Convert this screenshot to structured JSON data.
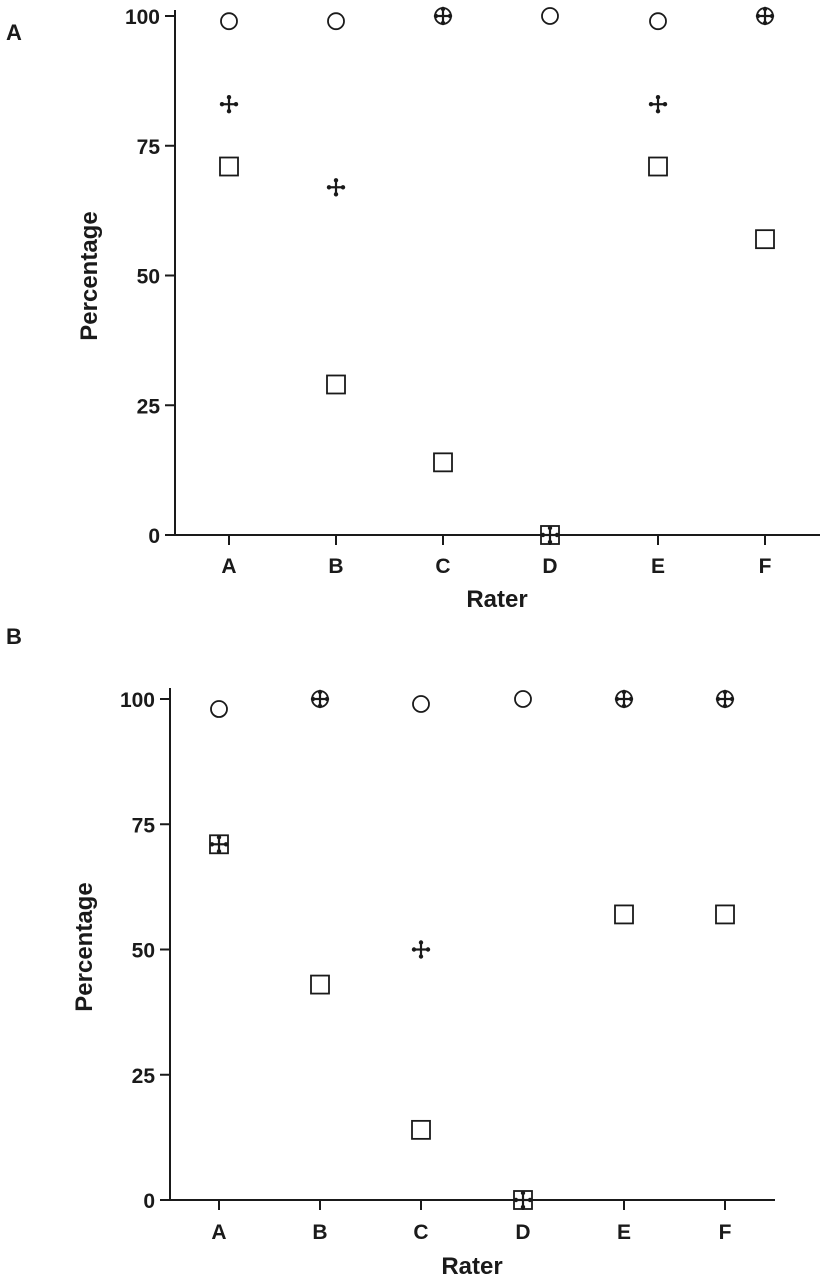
{
  "chart_data": [
    {
      "panel": "A",
      "type": "scatter",
      "xlabel": "Rater",
      "ylabel": "Percentage",
      "categories": [
        "A",
        "B",
        "C",
        "D",
        "E",
        "F"
      ],
      "ylim": [
        0,
        100
      ],
      "yticks": [
        0,
        25,
        50,
        75,
        100
      ],
      "series": [
        {
          "name": "circle",
          "marker": "circle",
          "values": [
            99,
            99,
            100,
            100,
            99,
            100
          ]
        },
        {
          "name": "cross",
          "marker": "cross",
          "values": [
            83,
            67,
            100,
            0,
            83,
            100
          ]
        },
        {
          "name": "square",
          "marker": "square",
          "values": [
            71,
            29,
            14,
            0,
            71,
            57
          ]
        }
      ]
    },
    {
      "panel": "B",
      "type": "scatter",
      "xlabel": "Rater",
      "ylabel": "Percentage",
      "categories": [
        "A",
        "B",
        "C",
        "D",
        "E",
        "F"
      ],
      "ylim": [
        0,
        100
      ],
      "yticks": [
        0,
        25,
        50,
        75,
        100
      ],
      "series": [
        {
          "name": "circle",
          "marker": "circle",
          "values": [
            98,
            100,
            99,
            100,
            100,
            100
          ]
        },
        {
          "name": "cross",
          "marker": "cross",
          "values": [
            71,
            100,
            50,
            0,
            100,
            100
          ]
        },
        {
          "name": "square",
          "marker": "square",
          "values": [
            71,
            43,
            14,
            0,
            57,
            57
          ]
        }
      ]
    }
  ]
}
